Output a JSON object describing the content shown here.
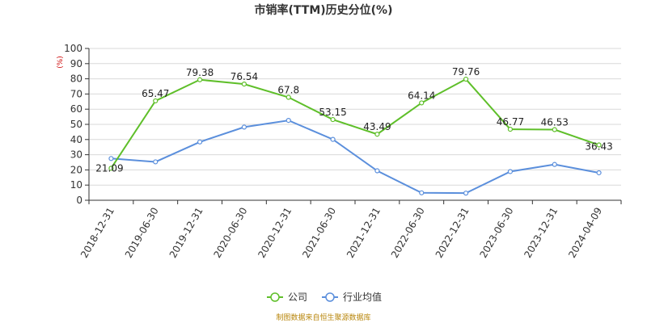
{
  "chart_data": {
    "type": "line",
    "title": "市销率(TTM)历史分位(%)",
    "unit_label": "(%)",
    "categories": [
      "2018-12-31",
      "2019-06-30",
      "2019-12-31",
      "2020-06-30",
      "2020-12-31",
      "2021-06-30",
      "2021-12-31",
      "2022-06-30",
      "2022-12-31",
      "2023-06-30",
      "2023-12-31",
      "2024-04-09"
    ],
    "ylim": [
      0,
      100
    ],
    "yticks": [
      0,
      10,
      20,
      30,
      40,
      50,
      60,
      70,
      80,
      90,
      100
    ],
    "grid": true,
    "legend_position": "bottom-center",
    "series": [
      {
        "name": "公司",
        "color": "#5fbf2a",
        "values": [
          21.09,
          65.47,
          79.38,
          76.54,
          67.8,
          53.15,
          43.49,
          64.14,
          79.76,
          46.77,
          46.53,
          36.43
        ],
        "labels": [
          "21.09",
          "65.47",
          "79.38",
          "76.54",
          "67.8",
          "53.15",
          "43.49",
          "64.14",
          "79.76",
          "46.77",
          "46.53",
          "36.43"
        ]
      },
      {
        "name": "行业均值",
        "color": "#5b8fdc",
        "values": [
          27.5,
          25.3,
          38.4,
          48.2,
          52.6,
          40.1,
          19.4,
          4.9,
          4.7,
          18.9,
          23.6,
          18.1
        ]
      }
    ],
    "source_note": "制图数据来自恒生聚源数据库"
  }
}
